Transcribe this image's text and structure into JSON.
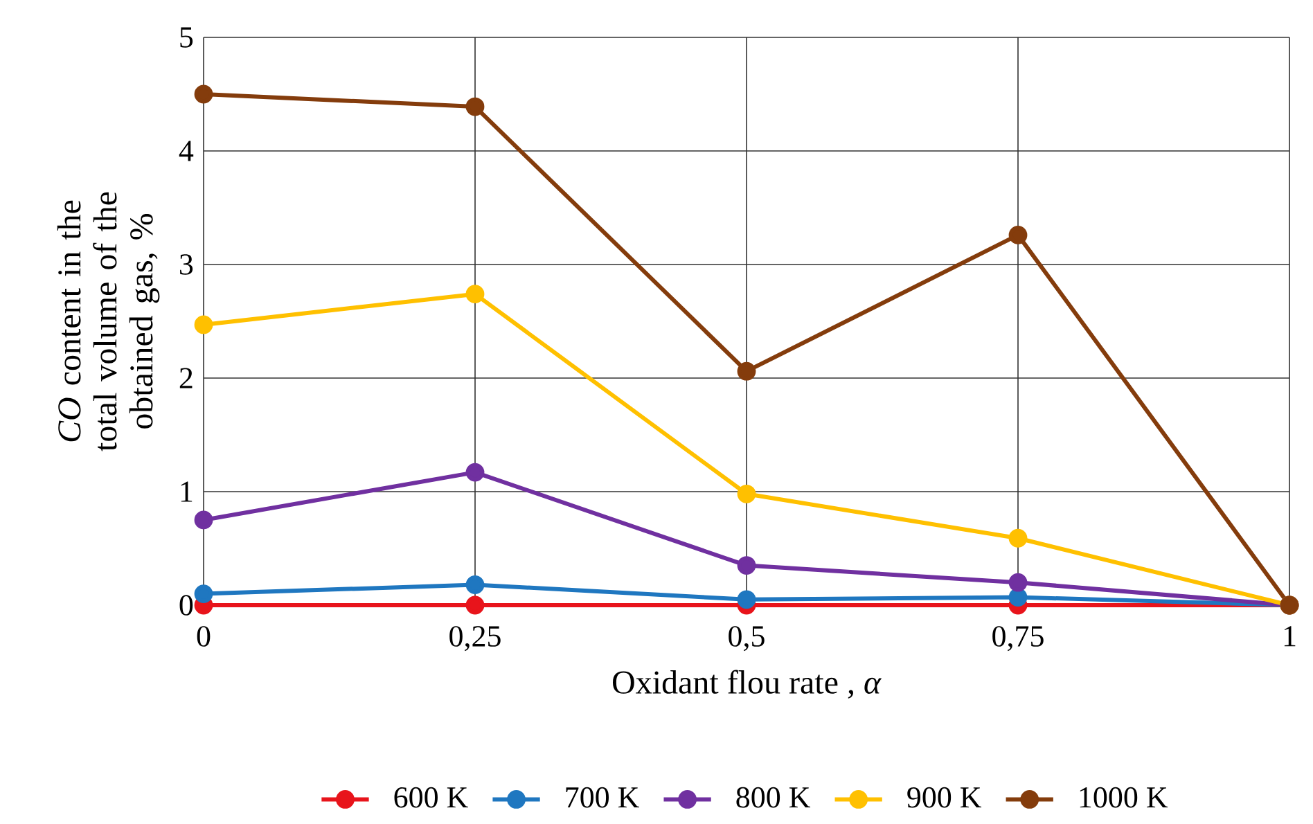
{
  "chart_data": {
    "type": "line",
    "xlabel": "Oxidant flou rate , *α*",
    "ylabel": "*CO* content in the total volume of the obtained gas, %",
    "x": [
      0,
      0.25,
      0.5,
      0.75,
      1
    ],
    "xlim": [
      0,
      1
    ],
    "xticks": [
      0,
      {
        "value": 0.25,
        "label": "0,25"
      },
      {
        "value": 0.5,
        "label": "0,5"
      },
      {
        "value": 0.75,
        "label": "0,75"
      },
      1
    ],
    "ylim": [
      0,
      5
    ],
    "yticks": [
      0,
      1,
      2,
      3,
      4,
      5
    ],
    "grid": true,
    "legend": "bottom",
    "marker": "circle",
    "line_style": "solid",
    "series": [
      {
        "name": "600 K",
        "color": "#e8141b",
        "values": [
          0,
          0,
          0,
          0,
          0
        ]
      },
      {
        "name": "700 K",
        "color": "#1f77c0",
        "values": [
          0.1,
          0.18,
          0.05,
          0.07,
          0
        ]
      },
      {
        "name": "800 K",
        "color": "#7030a0",
        "values": [
          0.75,
          1.17,
          0.35,
          0.2,
          0
        ]
      },
      {
        "name": "900 K",
        "color": "#ffc000",
        "values": [
          2.47,
          2.74,
          0.98,
          0.59,
          0
        ]
      },
      {
        "name": "1000 K",
        "color": "#843c0c",
        "values": [
          4.5,
          4.39,
          2.06,
          3.26,
          0
        ]
      }
    ]
  }
}
